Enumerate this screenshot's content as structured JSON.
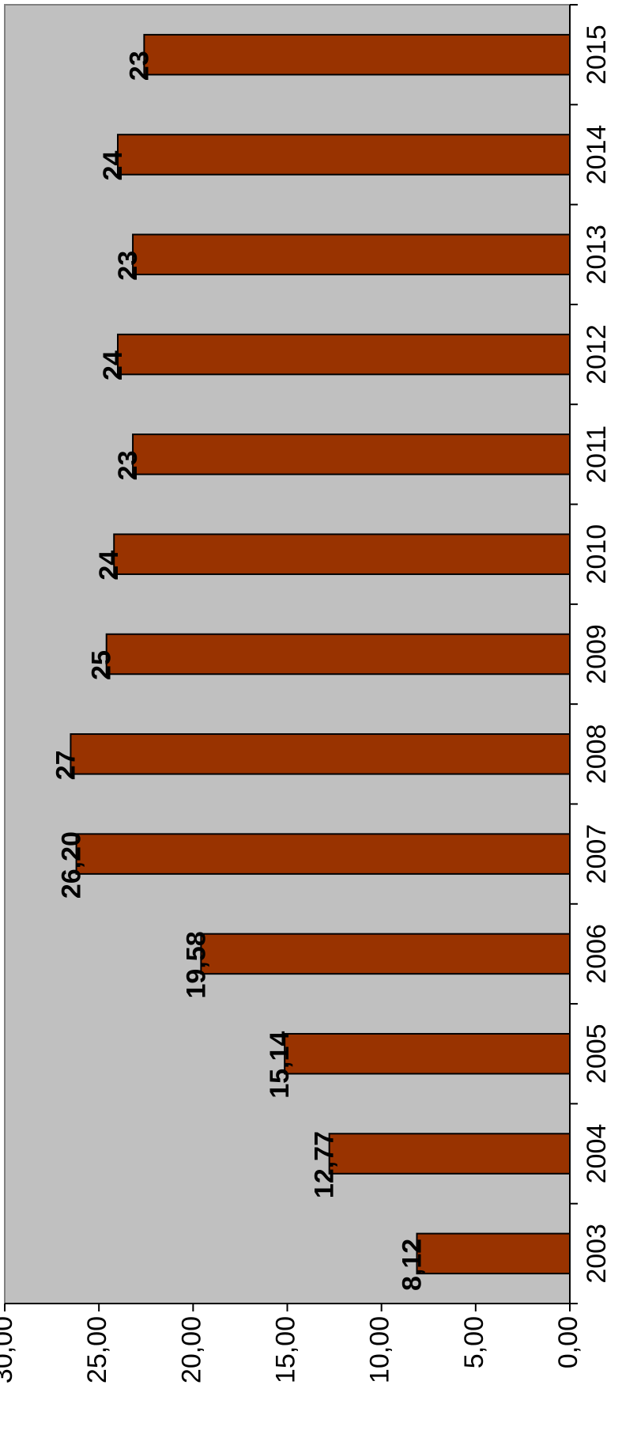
{
  "chart_data": {
    "type": "bar",
    "categories": [
      "2003",
      "2004",
      "2005",
      "2006",
      "2007",
      "2008",
      "2009",
      "2010",
      "2011",
      "2012",
      "2013",
      "2014",
      "2015"
    ],
    "values": [
      8.12,
      12.77,
      15.14,
      19.58,
      26.2,
      26.5,
      24.6,
      24.2,
      23.2,
      24.0,
      23.2,
      24.0,
      22.6
    ],
    "value_labels": [
      "8,12",
      "12,77",
      "15,14",
      "19,58",
      "26,20",
      "27",
      "25",
      "24",
      "23",
      "24",
      "23",
      "24",
      "23"
    ],
    "color": "#993300",
    "ylim": [
      0,
      30
    ],
    "yticks": [
      {
        "value": 0,
        "label": "0,00"
      },
      {
        "value": 5,
        "label": "5,00"
      },
      {
        "value": 10,
        "label": "10,00"
      },
      {
        "value": 15,
        "label": "15,00"
      },
      {
        "value": 20,
        "label": "20,00"
      },
      {
        "value": 25,
        "label": "25,00"
      },
      {
        "value": 30,
        "label": "30,00"
      }
    ]
  }
}
